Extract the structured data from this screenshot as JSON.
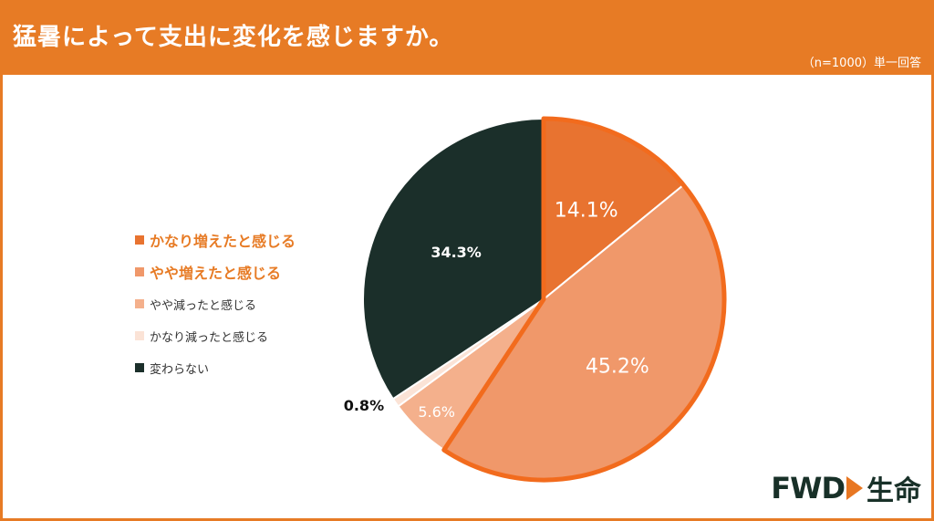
{
  "header": {
    "title": "猛暑によって支出に変化を感じますか。",
    "note": "（n=1000）単一回答"
  },
  "chart_data": {
    "type": "pie",
    "title": "猛暑によって支出に変化を感じますか。",
    "start_angle_deg": 0,
    "direction": "clockwise",
    "slices": [
      {
        "label": "かなり増えたと感じる",
        "value": 14.1,
        "display": "14.1%",
        "color": "#e87330",
        "highlight": true,
        "outlined": true
      },
      {
        "label": "やや増えたと感じる",
        "value": 45.2,
        "display": "45.2%",
        "color": "#f0986a",
        "highlight": true,
        "outlined": true
      },
      {
        "label": "やや減ったと感じる",
        "value": 5.6,
        "display": "5.6%",
        "color": "#f4b08c",
        "highlight": false,
        "outlined": false
      },
      {
        "label": "かなり減ったと感じる",
        "value": 0.8,
        "display": "0.8%",
        "color": "#fbe3d6",
        "highlight": false,
        "outlined": false
      },
      {
        "label": "変わらない",
        "value": 34.3,
        "display": "34.3%",
        "color": "#1b2f2a",
        "highlight": false,
        "outlined": false
      }
    ],
    "outline_color": "#f26b1d",
    "highlight_legend_color": "#e77b25",
    "legend_position": "left"
  },
  "logo": {
    "word": "FWD",
    "jp": "生命"
  }
}
